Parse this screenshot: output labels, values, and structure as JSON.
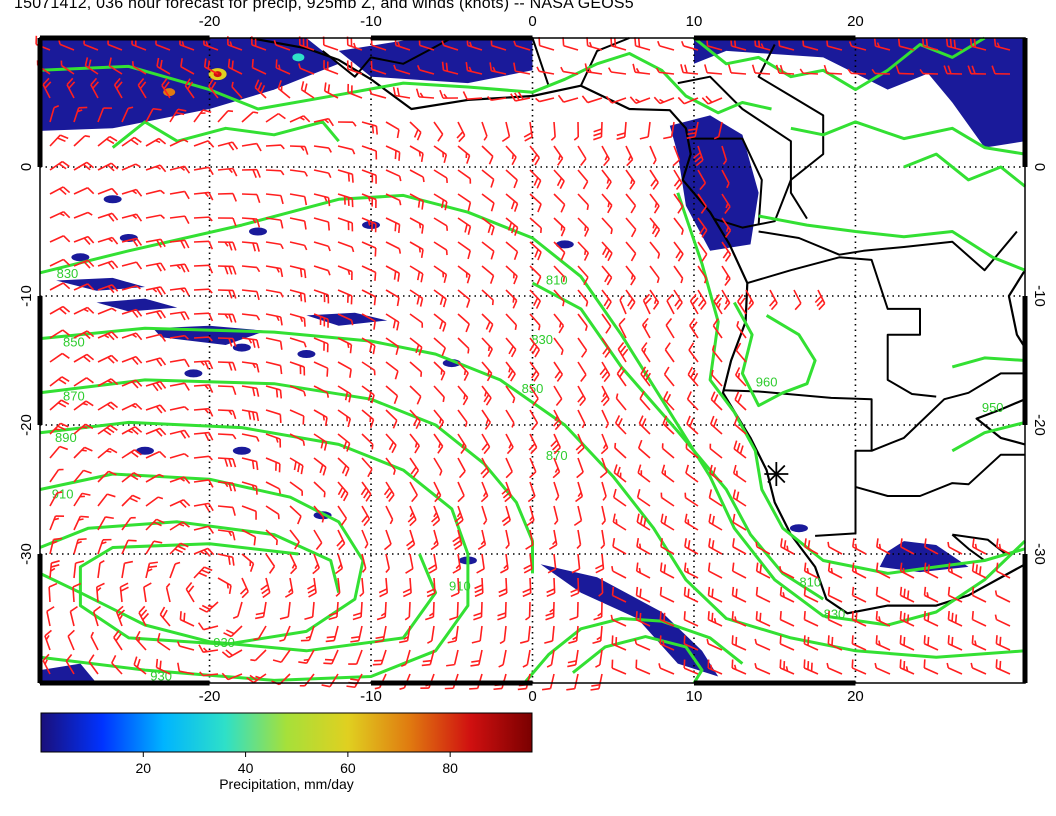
{
  "title": "15071412, 036 hour forecast for precip, 925mb Z, and winds (knots) -- NASA GEOS5",
  "map": {
    "lon_range": [
      -30.5,
      30.5
    ],
    "lat_range": [
      -40.0,
      10.0
    ],
    "lon_ticks": [
      "-20",
      "-10",
      "0",
      "10",
      "20"
    ],
    "lat_ticks_left": [
      "0",
      "-10",
      "-20",
      "-30"
    ],
    "lat_ticks_right": [
      "0",
      "-10",
      "-20",
      "-30"
    ],
    "grid": "dotted every 10 degrees",
    "colors": {
      "frame": "#000000",
      "height_contour": "#33e033",
      "wind_barb": "#ff1f1f",
      "coastline_border": "#000000",
      "precip_fill": "#1a1a9a"
    },
    "height_contour_labels": [
      "830",
      "850",
      "870",
      "890",
      "910",
      "930",
      "810",
      "830",
      "850",
      "870",
      "910",
      "930",
      "960",
      "950",
      "810",
      "830"
    ],
    "marker_icon": "star-marker-icon"
  },
  "colorbar": {
    "label": "Precipitation, mm/day",
    "ticks": [
      "20",
      "40",
      "60",
      "80"
    ],
    "range": [
      0,
      96
    ],
    "colors": [
      "#1a0f7a",
      "#0033ff",
      "#00b4ff",
      "#2ee0c8",
      "#a6e03a",
      "#e0d020",
      "#e07b10",
      "#d01010",
      "#7a0000"
    ]
  }
}
